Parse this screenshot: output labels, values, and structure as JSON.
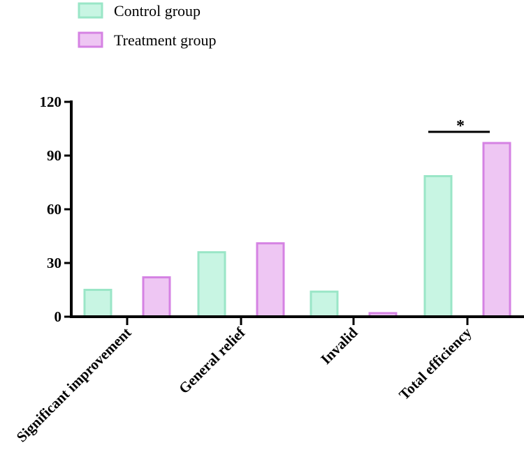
{
  "chart_data": {
    "type": "bar",
    "categories": [
      "Significant improvement",
      "General relief",
      "Invalid",
      "Total efficiency"
    ],
    "series": [
      {
        "name": "Control group",
        "values": [
          15,
          36,
          14,
          78.5
        ],
        "fill": "#c8f5e3",
        "stroke": "#9ae6c7"
      },
      {
        "name": "Treatment group",
        "values": [
          22,
          41,
          2,
          97
        ],
        "fill": "#eec6f3",
        "stroke": "#d582e3"
      }
    ],
    "title": "",
    "xlabel": "",
    "ylabel": "",
    "ylim": [
      0,
      120
    ],
    "yticks": [
      0,
      30,
      60,
      90,
      120
    ],
    "annotations": [
      {
        "category": "Total efficiency",
        "text": "*"
      }
    ],
    "legend": "top-left"
  }
}
